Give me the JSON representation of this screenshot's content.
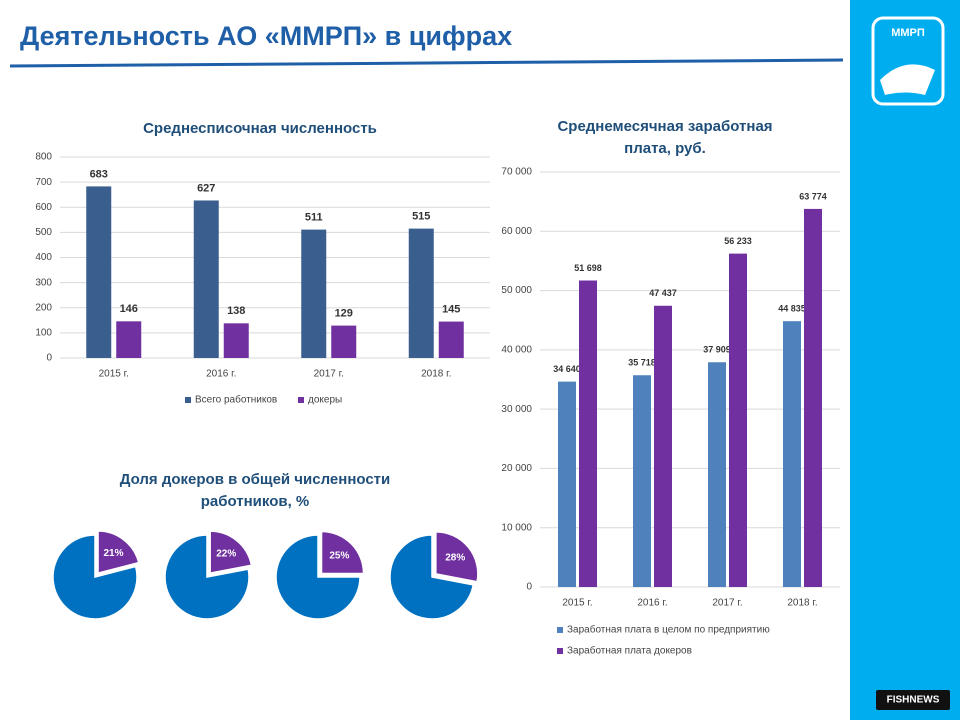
{
  "header": {
    "title": "Деятельность АО «ММРП» в цифрах",
    "logo": "ММРП",
    "badge": "FISHNEWS"
  },
  "chart_data": [
    {
      "type": "bar",
      "title": "Среднесписочная численность",
      "categories": [
        "2015 г.",
        "2016 г.",
        "2017 г.",
        "2018 г."
      ],
      "series": [
        {
          "name": "Всего работников",
          "color": "#3a5f8f",
          "values": [
            683,
            627,
            511,
            515
          ]
        },
        {
          "name": "докеры",
          "color": "#7030a0",
          "values": [
            146,
            138,
            129,
            145
          ]
        }
      ],
      "ylim": [
        0,
        800
      ],
      "yticks": [
        0,
        100,
        200,
        300,
        400,
        500,
        600,
        700,
        800
      ],
      "grid": true
    },
    {
      "type": "bar",
      "title": "Среднемесячная заработная плата, руб.",
      "categories": [
        "2015 г.",
        "2016 г.",
        "2017 г.",
        "2018 г."
      ],
      "series": [
        {
          "name": "Заработная плата в целом по предприятию",
          "color": "#4f81bd",
          "values": [
            34640,
            35718,
            37909,
            44835
          ],
          "value_labels": [
            "34 640",
            "35 718",
            "37 909",
            "44 835"
          ]
        },
        {
          "name": "Заработная плата докеров",
          "color": "#7030a0",
          "values": [
            51698,
            47437,
            56233,
            63774
          ],
          "value_labels": [
            "51 698",
            "47 437",
            "56 233",
            "63 774"
          ]
        }
      ],
      "ylim": [
        0,
        70000
      ],
      "yticks": [
        0,
        {
          "value": 10000,
          "label": "10 000"
        },
        {
          "value": 20000,
          "label": "20 000"
        },
        {
          "value": 30000,
          "label": "30 000"
        },
        {
          "value": 40000,
          "label": "40 000"
        },
        {
          "value": 50000,
          "label": "50 000"
        },
        {
          "value": 60000,
          "label": "60 000"
        },
        {
          "value": 70000,
          "label": "70 000"
        }
      ],
      "grid": true
    },
    {
      "type": "pie",
      "title": "Доля докеров в общей численности работников, %",
      "values": [
        21,
        22,
        25,
        28
      ],
      "value_labels": [
        "21%",
        "22%",
        "25%",
        "28%"
      ],
      "color": "#7030a0",
      "rest_color": "#0070c0"
    }
  ]
}
